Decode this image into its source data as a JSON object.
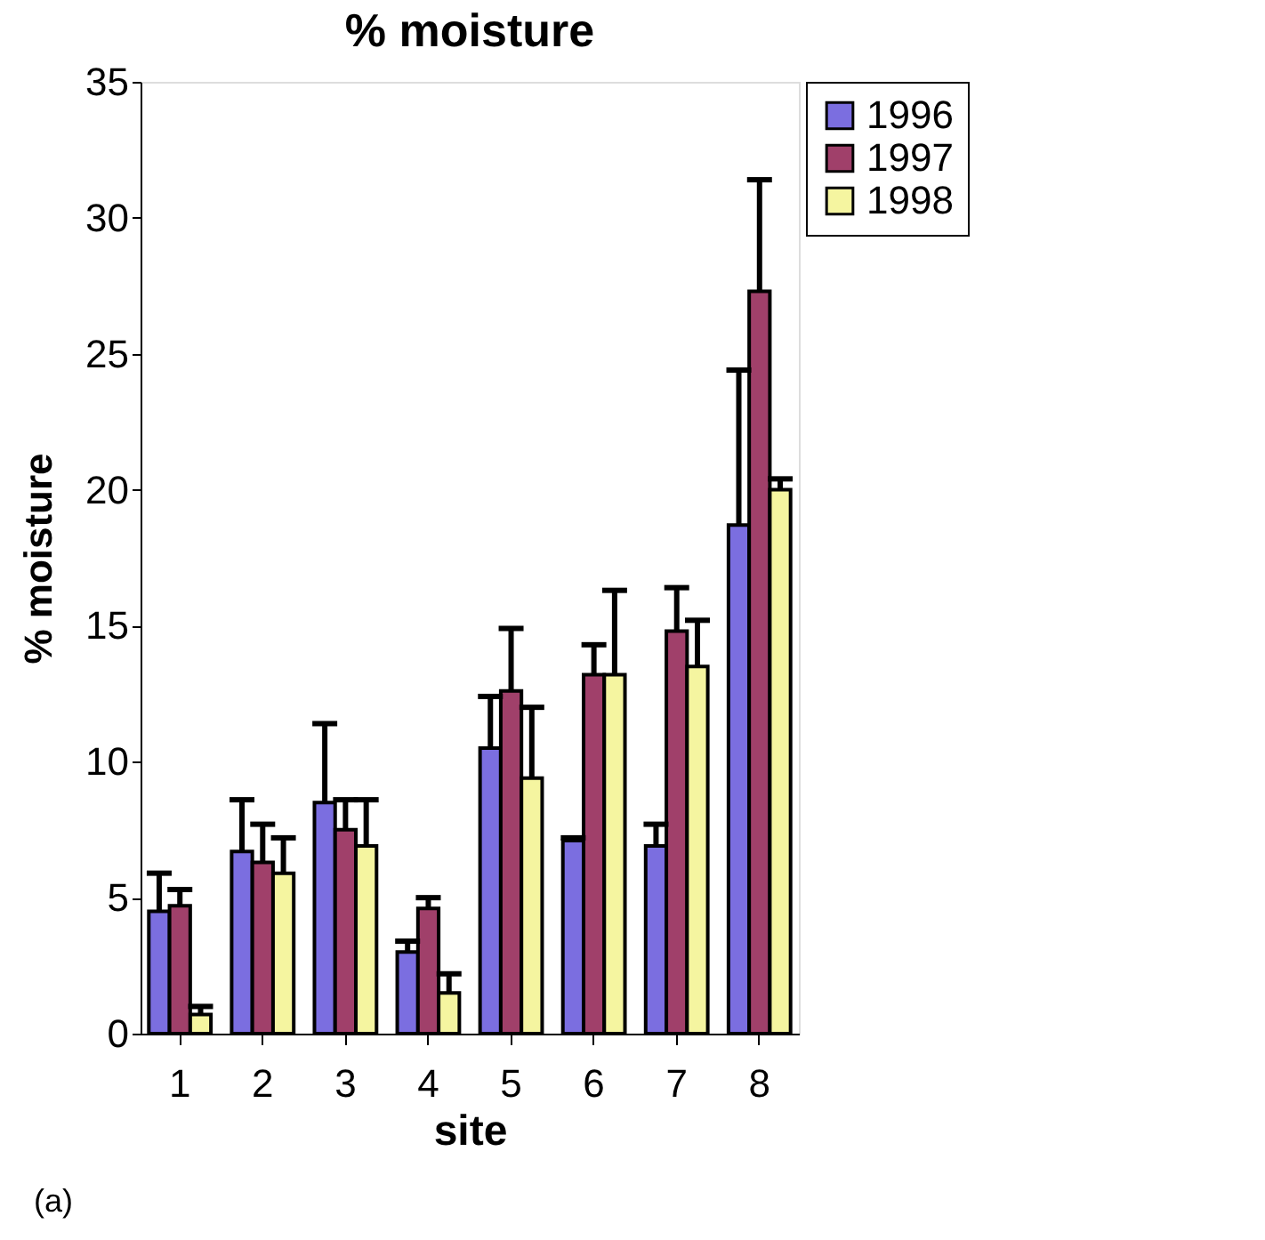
{
  "chart_data": {
    "type": "bar",
    "title": "% moisture",
    "xlabel": "site",
    "ylabel": "% moisture",
    "categories": [
      "1",
      "2",
      "3",
      "4",
      "5",
      "6",
      "7",
      "8"
    ],
    "series": [
      {
        "name": "1996",
        "color": "#7b6ee0",
        "values": [
          4.5,
          6.7,
          8.5,
          3.0,
          10.5,
          7.1,
          6.9,
          18.7
        ],
        "errors": [
          [
            4.5,
            5.9
          ],
          [
            6.7,
            8.6
          ],
          [
            8.5,
            11.4
          ],
          [
            3.0,
            3.4
          ],
          [
            10.5,
            12.4
          ],
          [
            7.1,
            7.2
          ],
          [
            6.9,
            7.7
          ],
          [
            18.7,
            24.4
          ]
        ]
      },
      {
        "name": "1997",
        "color": "#a0406a",
        "values": [
          4.7,
          6.3,
          7.5,
          4.6,
          12.6,
          13.2,
          14.8,
          27.3
        ],
        "errors": [
          [
            4.7,
            5.3
          ],
          [
            6.3,
            7.7
          ],
          [
            7.5,
            8.6
          ],
          [
            4.6,
            5.0
          ],
          [
            12.6,
            14.9
          ],
          [
            13.2,
            14.3
          ],
          [
            14.8,
            16.4
          ],
          [
            27.3,
            31.4
          ]
        ]
      },
      {
        "name": "1998",
        "color": "#f5f5a0",
        "values": [
          0.7,
          5.9,
          6.9,
          1.5,
          9.4,
          13.2,
          13.5,
          20.0
        ],
        "errors": [
          [
            0.7,
            1.0
          ],
          [
            5.9,
            7.2
          ],
          [
            6.9,
            8.6
          ],
          [
            1.5,
            2.2
          ],
          [
            9.4,
            12.0
          ],
          [
            13.2,
            16.3
          ],
          [
            13.5,
            15.2
          ],
          [
            20.0,
            20.4
          ]
        ]
      }
    ],
    "ylim": [
      0,
      35
    ],
    "yticks": [
      0,
      5,
      10,
      15,
      20,
      25,
      30,
      35
    ],
    "grid": false,
    "legend": "right",
    "annotations": [
      "(a)"
    ]
  }
}
